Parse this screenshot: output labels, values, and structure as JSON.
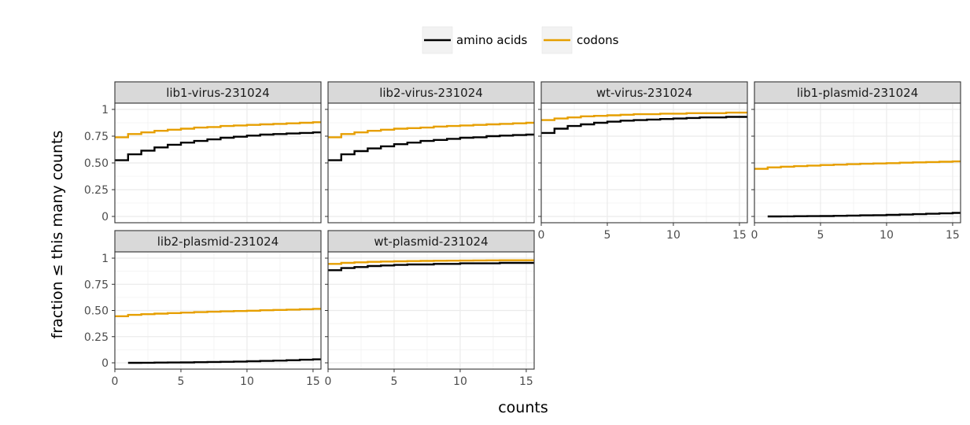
{
  "chart_data": {
    "type": "line",
    "step": true,
    "xlabel": "counts",
    "ylabel": "fraction ≤ this many counts",
    "xlim": [
      0,
      15.6
    ],
    "ylim": [
      0,
      1
    ],
    "x_ticks": [
      0,
      5,
      10,
      15
    ],
    "y_ticks": [
      0,
      0.25,
      0.5,
      0.75,
      1
    ],
    "y_tick_labels": [
      "0",
      "0.25",
      "0.50",
      "0.75",
      "1"
    ],
    "grid": true,
    "legend_position": "top",
    "legend": [
      {
        "name": "amino acids",
        "color": "#000000"
      },
      {
        "name": "codons",
        "color": "#e69f00"
      }
    ],
    "facets": [
      {
        "title": "lib1-virus-231024",
        "series": [
          {
            "name": "amino acids",
            "color": "#000000",
            "x": [
              0,
              1,
              2,
              3,
              4,
              5,
              6,
              7,
              8,
              9,
              10,
              11,
              12,
              13,
              14,
              15,
              16
            ],
            "y": [
              0.525,
              0.58,
              0.615,
              0.645,
              0.67,
              0.69,
              0.705,
              0.72,
              0.735,
              0.745,
              0.755,
              0.765,
              0.77,
              0.775,
              0.78,
              0.785,
              0.79
            ]
          },
          {
            "name": "codons",
            "color": "#e69f00",
            "x": [
              0,
              1,
              2,
              3,
              4,
              5,
              6,
              7,
              8,
              9,
              10,
              11,
              12,
              13,
              14,
              15,
              16
            ],
            "y": [
              0.74,
              0.77,
              0.785,
              0.8,
              0.81,
              0.82,
              0.83,
              0.835,
              0.845,
              0.85,
              0.855,
              0.86,
              0.865,
              0.87,
              0.875,
              0.88,
              0.885
            ]
          }
        ]
      },
      {
        "title": "lib2-virus-231024",
        "series": [
          {
            "name": "amino acids",
            "color": "#000000",
            "x": [
              0,
              1,
              2,
              3,
              4,
              5,
              6,
              7,
              8,
              9,
              10,
              11,
              12,
              13,
              14,
              15,
              16
            ],
            "y": [
              0.525,
              0.58,
              0.61,
              0.635,
              0.655,
              0.675,
              0.69,
              0.705,
              0.715,
              0.725,
              0.735,
              0.74,
              0.75,
              0.755,
              0.76,
              0.765,
              0.77
            ]
          },
          {
            "name": "codons",
            "color": "#e69f00",
            "x": [
              0,
              1,
              2,
              3,
              4,
              5,
              6,
              7,
              8,
              9,
              10,
              11,
              12,
              13,
              14,
              15,
              16
            ],
            "y": [
              0.74,
              0.77,
              0.785,
              0.8,
              0.81,
              0.82,
              0.825,
              0.83,
              0.84,
              0.845,
              0.85,
              0.855,
              0.86,
              0.865,
              0.87,
              0.875,
              0.88
            ]
          }
        ]
      },
      {
        "title": "wt-virus-231024",
        "series": [
          {
            "name": "amino acids",
            "color": "#000000",
            "x": [
              0,
              1,
              2,
              3,
              4,
              5,
              6,
              7,
              8,
              9,
              10,
              11,
              12,
              13,
              14,
              15,
              16
            ],
            "y": [
              0.78,
              0.82,
              0.845,
              0.86,
              0.875,
              0.885,
              0.895,
              0.9,
              0.905,
              0.91,
              0.915,
              0.92,
              0.925,
              0.925,
              0.93,
              0.93,
              0.935
            ]
          },
          {
            "name": "codons",
            "color": "#e69f00",
            "x": [
              0,
              1,
              2,
              3,
              4,
              5,
              6,
              7,
              8,
              9,
              10,
              11,
              12,
              13,
              14,
              15,
              16
            ],
            "y": [
              0.9,
              0.915,
              0.925,
              0.935,
              0.94,
              0.945,
              0.95,
              0.955,
              0.955,
              0.96,
              0.96,
              0.965,
              0.965,
              0.965,
              0.97,
              0.97,
              0.97
            ]
          }
        ]
      },
      {
        "title": "lib1-plasmid-231024",
        "series": [
          {
            "name": "amino acids",
            "color": "#000000",
            "x": [
              1,
              2,
              3,
              4,
              5,
              6,
              7,
              8,
              9,
              10,
              11,
              12,
              13,
              14,
              15,
              16
            ],
            "y": [
              0.0,
              0.001,
              0.002,
              0.003,
              0.004,
              0.006,
              0.008,
              0.01,
              0.012,
              0.015,
              0.018,
              0.021,
              0.025,
              0.029,
              0.033,
              0.038
            ]
          },
          {
            "name": "codons",
            "color": "#e69f00",
            "x": [
              0,
              1,
              2,
              3,
              4,
              5,
              6,
              7,
              8,
              9,
              10,
              11,
              12,
              13,
              14,
              15,
              16
            ],
            "y": [
              0.445,
              0.458,
              0.465,
              0.47,
              0.475,
              0.48,
              0.484,
              0.488,
              0.492,
              0.495,
              0.498,
              0.502,
              0.505,
              0.508,
              0.511,
              0.514,
              0.518
            ]
          }
        ]
      },
      {
        "title": "lib2-plasmid-231024",
        "series": [
          {
            "name": "amino acids",
            "color": "#000000",
            "x": [
              1,
              2,
              3,
              4,
              5,
              6,
              7,
              8,
              9,
              10,
              11,
              12,
              13,
              14,
              15,
              16
            ],
            "y": [
              0.0,
              0.001,
              0.002,
              0.003,
              0.004,
              0.006,
              0.008,
              0.01,
              0.012,
              0.015,
              0.018,
              0.021,
              0.025,
              0.029,
              0.033,
              0.038
            ]
          },
          {
            "name": "codons",
            "color": "#e69f00",
            "x": [
              0,
              1,
              2,
              3,
              4,
              5,
              6,
              7,
              8,
              9,
              10,
              11,
              12,
              13,
              14,
              15,
              16
            ],
            "y": [
              0.445,
              0.458,
              0.465,
              0.47,
              0.475,
              0.48,
              0.484,
              0.488,
              0.492,
              0.495,
              0.498,
              0.502,
              0.505,
              0.508,
              0.512,
              0.516,
              0.52
            ]
          }
        ]
      },
      {
        "title": "wt-plasmid-231024",
        "series": [
          {
            "name": "amino acids",
            "color": "#000000",
            "x": [
              0,
              1,
              2,
              3,
              4,
              5,
              6,
              7,
              8,
              9,
              10,
              11,
              12,
              13,
              14,
              15,
              16
            ],
            "y": [
              0.885,
              0.905,
              0.915,
              0.925,
              0.93,
              0.935,
              0.94,
              0.94,
              0.945,
              0.945,
              0.95,
              0.95,
              0.95,
              0.955,
              0.955,
              0.955,
              0.96
            ]
          },
          {
            "name": "codons",
            "color": "#e69f00",
            "x": [
              0,
              1,
              2,
              3,
              4,
              5,
              6,
              7,
              8,
              9,
              10,
              11,
              12,
              13,
              14,
              15,
              16
            ],
            "y": [
              0.945,
              0.955,
              0.96,
              0.965,
              0.968,
              0.97,
              0.972,
              0.974,
              0.975,
              0.976,
              0.977,
              0.978,
              0.979,
              0.98,
              0.98,
              0.98,
              0.98
            ]
          }
        ]
      }
    ]
  }
}
